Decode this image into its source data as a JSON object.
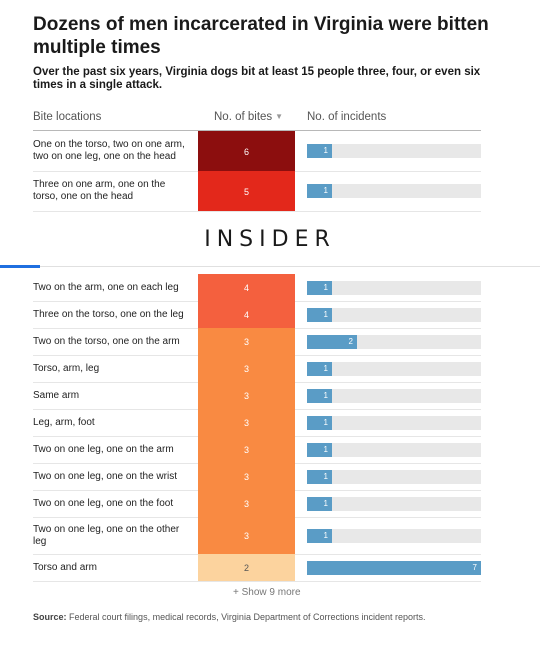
{
  "title": "Dozens of men incarcerated in Virginia were bitten multiple times",
  "subtitle": "Over the past six years, Virginia dogs bit at least 15 people three, four, or even six times in a single attack.",
  "headers": {
    "locations": "Bite locations",
    "bites": "No. of bites",
    "incidents": "No. of incidents"
  },
  "logo": "INSIDER",
  "show_more": "+ Show 9 more",
  "source_label": "Source:",
  "source_text": "Federal court filings, medical records, Virginia Department of Corrections incident reports.",
  "colors": {
    "bites_6": "#8c0e0e",
    "bites_5": "#e3281b",
    "bites_4": "#f4603e",
    "bites_3": "#f98a42",
    "bites_2": "#fcd39e",
    "bar": "#5a9cc6",
    "track": "#e8e8e8"
  },
  "chart_data": {
    "type": "table",
    "columns": [
      "Bite locations",
      "No. of bites",
      "No. of incidents"
    ],
    "incidents_max": 7,
    "rows": [
      {
        "location": "One on the torso, two on one arm, two on one leg, one on the head",
        "bites": 6,
        "incidents": 1
      },
      {
        "location": "Three on one arm, one on the torso, one on the head",
        "bites": 5,
        "incidents": 1
      },
      {
        "location": "Two on the arm, one on each leg",
        "bites": 4,
        "incidents": 1
      },
      {
        "location": "Three on the torso, one on the leg",
        "bites": 4,
        "incidents": 1
      },
      {
        "location": "Two on the torso, one on the arm",
        "bites": 3,
        "incidents": 2
      },
      {
        "location": "Torso, arm, leg",
        "bites": 3,
        "incidents": 1
      },
      {
        "location": "Same arm",
        "bites": 3,
        "incidents": 1
      },
      {
        "location": "Leg, arm, foot",
        "bites": 3,
        "incidents": 1
      },
      {
        "location": "Two on one leg, one on the arm",
        "bites": 3,
        "incidents": 1
      },
      {
        "location": "Two on one leg, one on the wrist",
        "bites": 3,
        "incidents": 1
      },
      {
        "location": "Two on one leg, one on the foot",
        "bites": 3,
        "incidents": 1
      },
      {
        "location": "Two on one leg, one on the other leg",
        "bites": 3,
        "incidents": 1
      },
      {
        "location": "Torso and arm",
        "bites": 2,
        "incidents": 7
      }
    ]
  }
}
